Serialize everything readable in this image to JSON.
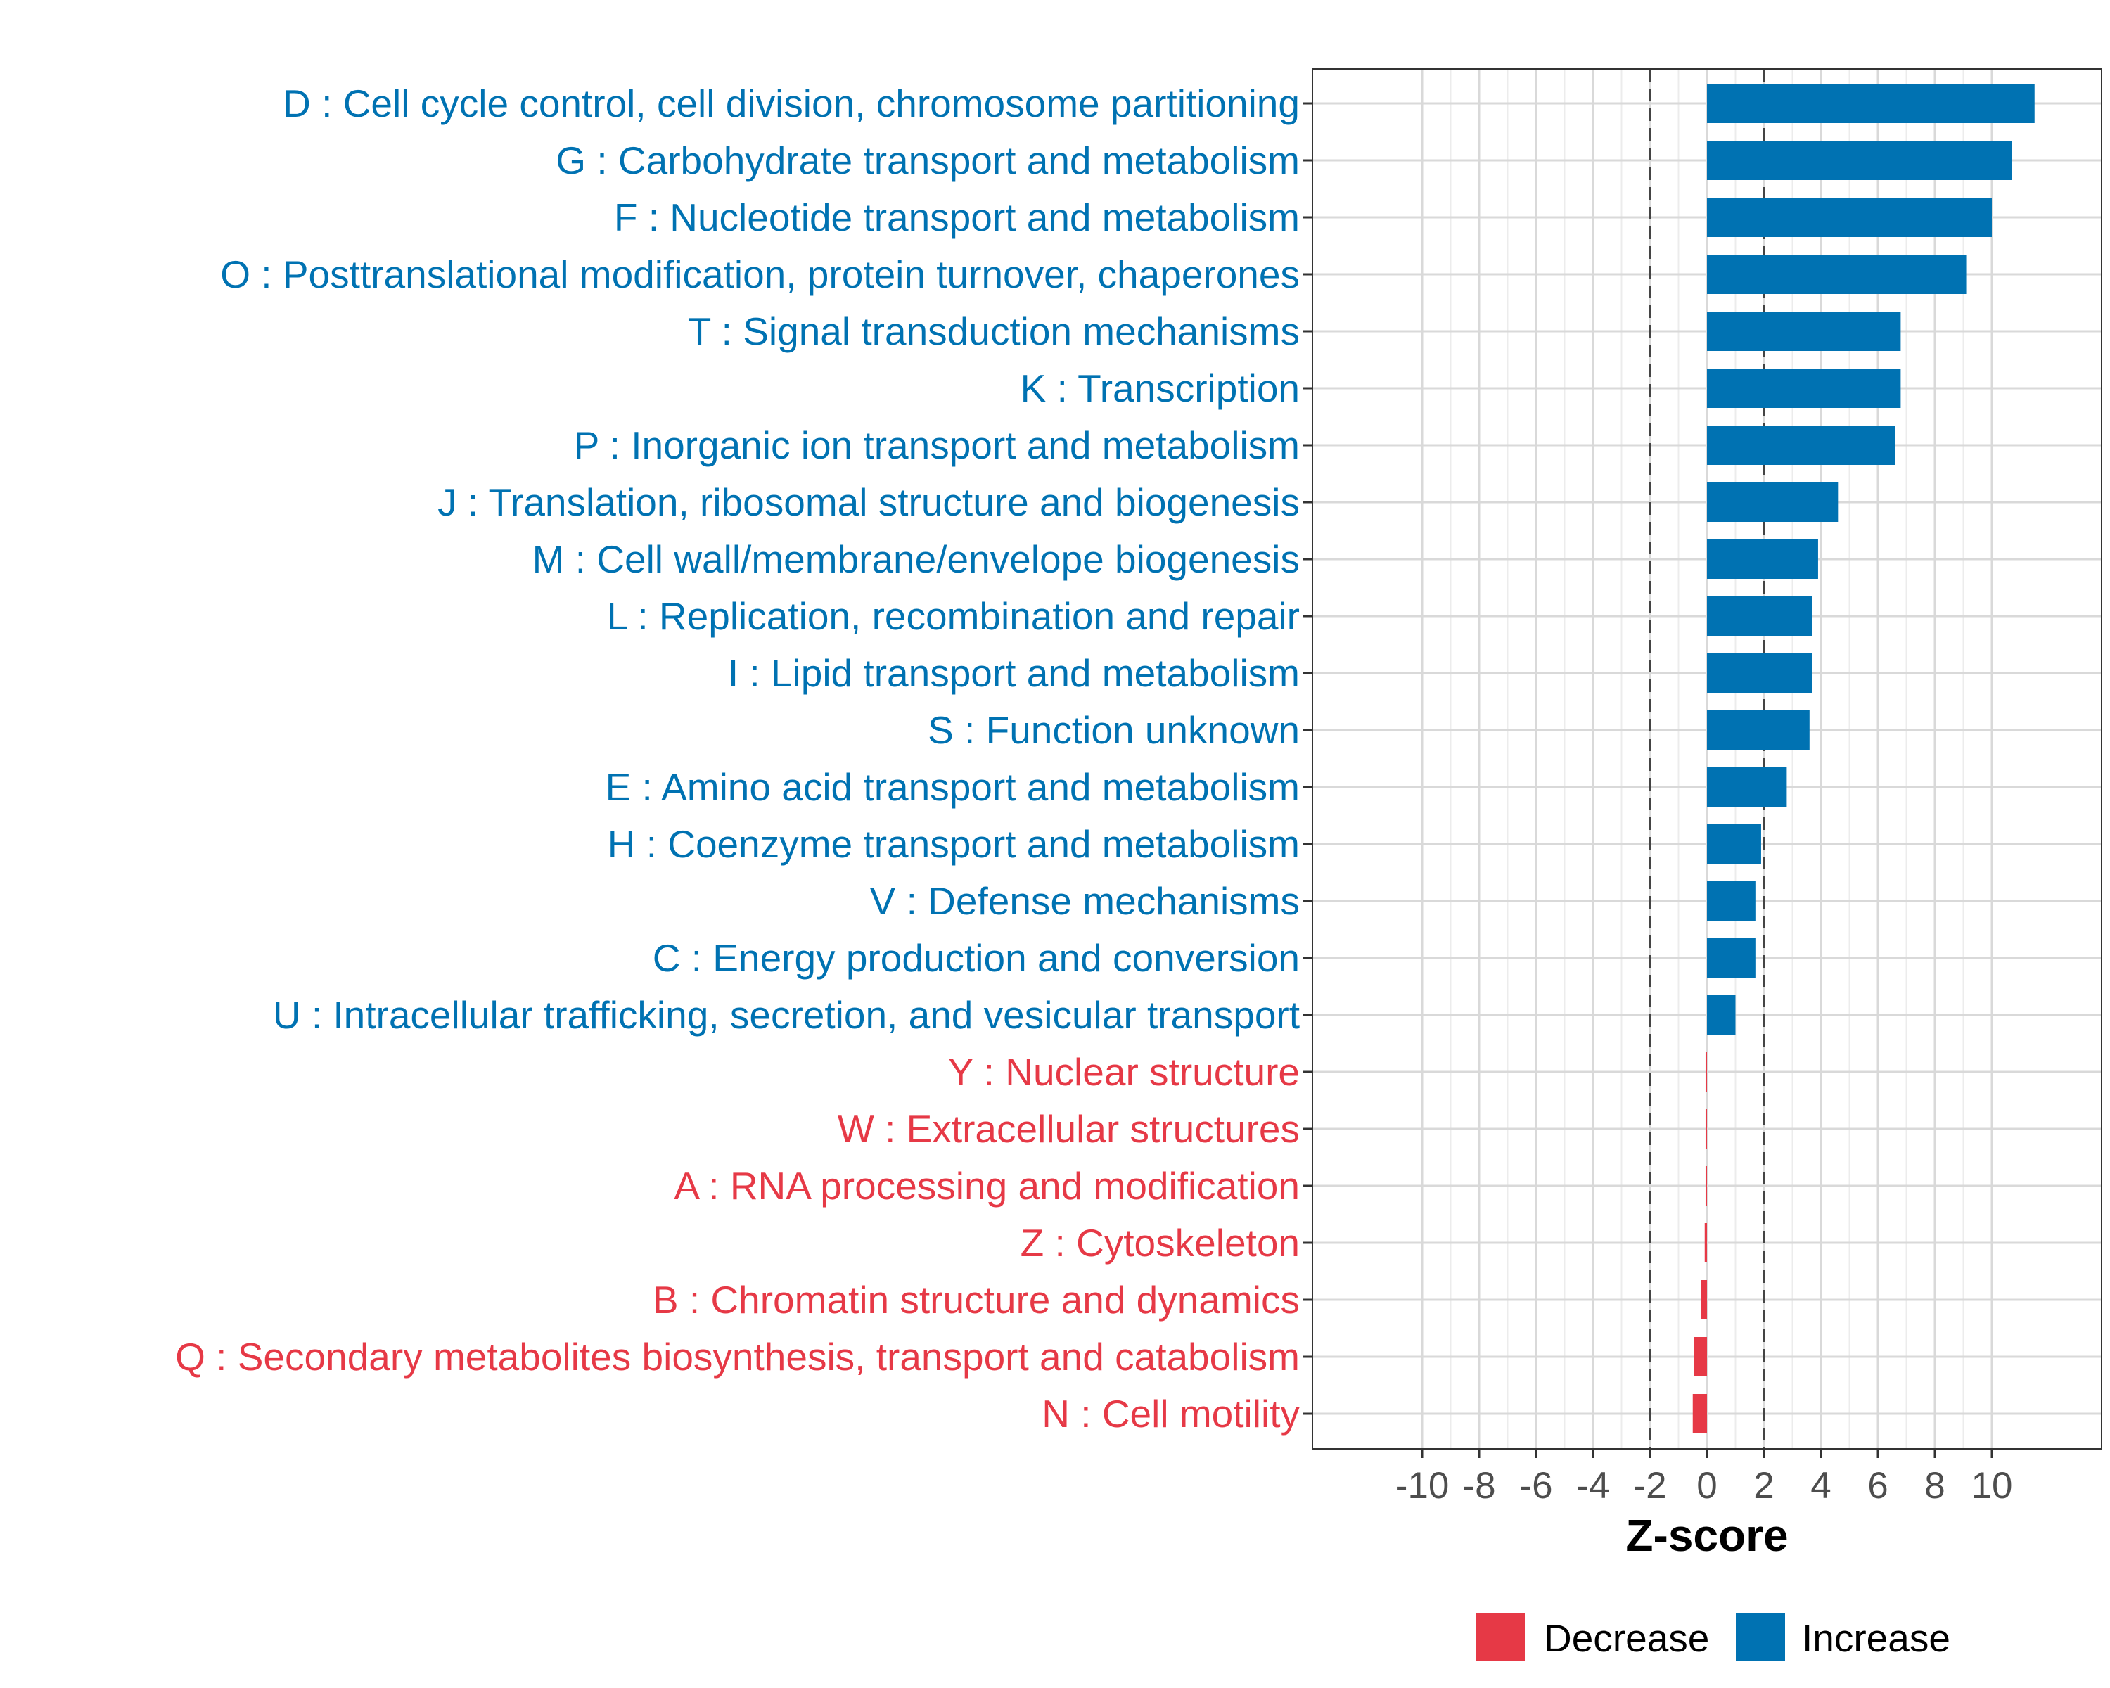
{
  "chart_data": {
    "type": "bar",
    "orientation": "horizontal",
    "xlabel": "Z-score",
    "ylabel": "",
    "xlim": [
      -14,
      14
    ],
    "xticks": [
      -10,
      -8,
      -6,
      -4,
      -2,
      0,
      2,
      4,
      6,
      8,
      10
    ],
    "xtick_labels": [
      "-10",
      "-8",
      "-6",
      "-4",
      "-2",
      "0",
      "2",
      "4",
      "6",
      "8",
      "10"
    ],
    "threshold_lines": [
      -2,
      2
    ],
    "grid": true,
    "legend_position": "bottom",
    "colors": {
      "increase": "#0072b2",
      "decrease": "#e63946",
      "threshold": "#444444",
      "grid": "#d9d9d9"
    },
    "legend": [
      {
        "key": "decrease",
        "label": "Decrease"
      },
      {
        "key": "increase",
        "label": "Increase"
      }
    ],
    "categories": [
      {
        "label": "D : Cell cycle control, cell division, chromosome partitioning",
        "value": 11.5,
        "group": "increase"
      },
      {
        "label": "G : Carbohydrate transport and metabolism",
        "value": 10.7,
        "group": "increase"
      },
      {
        "label": "F : Nucleotide transport and metabolism",
        "value": 10.0,
        "group": "increase"
      },
      {
        "label": "O : Posttranslational modification, protein turnover, chaperones",
        "value": 9.1,
        "group": "increase"
      },
      {
        "label": "T : Signal transduction mechanisms",
        "value": 6.8,
        "group": "increase"
      },
      {
        "label": "K : Transcription",
        "value": 6.8,
        "group": "increase"
      },
      {
        "label": "P : Inorganic ion transport and metabolism",
        "value": 6.6,
        "group": "increase"
      },
      {
        "label": "J : Translation, ribosomal structure and biogenesis",
        "value": 4.6,
        "group": "increase"
      },
      {
        "label": "M : Cell wall/membrane/envelope biogenesis",
        "value": 3.9,
        "group": "increase"
      },
      {
        "label": "L : Replication, recombination and repair",
        "value": 3.7,
        "group": "increase"
      },
      {
        "label": "I : Lipid transport and metabolism",
        "value": 3.7,
        "group": "increase"
      },
      {
        "label": "S : Function unknown",
        "value": 3.6,
        "group": "increase"
      },
      {
        "label": "E : Amino acid transport and metabolism",
        "value": 2.8,
        "group": "increase"
      },
      {
        "label": "H : Coenzyme transport and metabolism",
        "value": 1.9,
        "group": "increase"
      },
      {
        "label": "V : Defense mechanisms",
        "value": 1.7,
        "group": "increase"
      },
      {
        "label": "C : Energy production and conversion",
        "value": 1.7,
        "group": "increase"
      },
      {
        "label": "U : Intracellular trafficking, secretion, and vesicular transport",
        "value": 1.0,
        "group": "increase"
      },
      {
        "label": "Y : Nuclear structure",
        "value": -0.05,
        "group": "decrease"
      },
      {
        "label": "W : Extracellular structures",
        "value": -0.05,
        "group": "decrease"
      },
      {
        "label": "A : RNA processing and modification",
        "value": -0.05,
        "group": "decrease"
      },
      {
        "label": "Z : Cytoskeleton",
        "value": -0.08,
        "group": "decrease"
      },
      {
        "label": "B : Chromatin structure and dynamics",
        "value": -0.2,
        "group": "decrease"
      },
      {
        "label": "Q : Secondary metabolites biosynthesis, transport and catabolism",
        "value": -0.45,
        "group": "decrease"
      },
      {
        "label": "N : Cell motility",
        "value": -0.5,
        "group": "decrease"
      }
    ]
  }
}
